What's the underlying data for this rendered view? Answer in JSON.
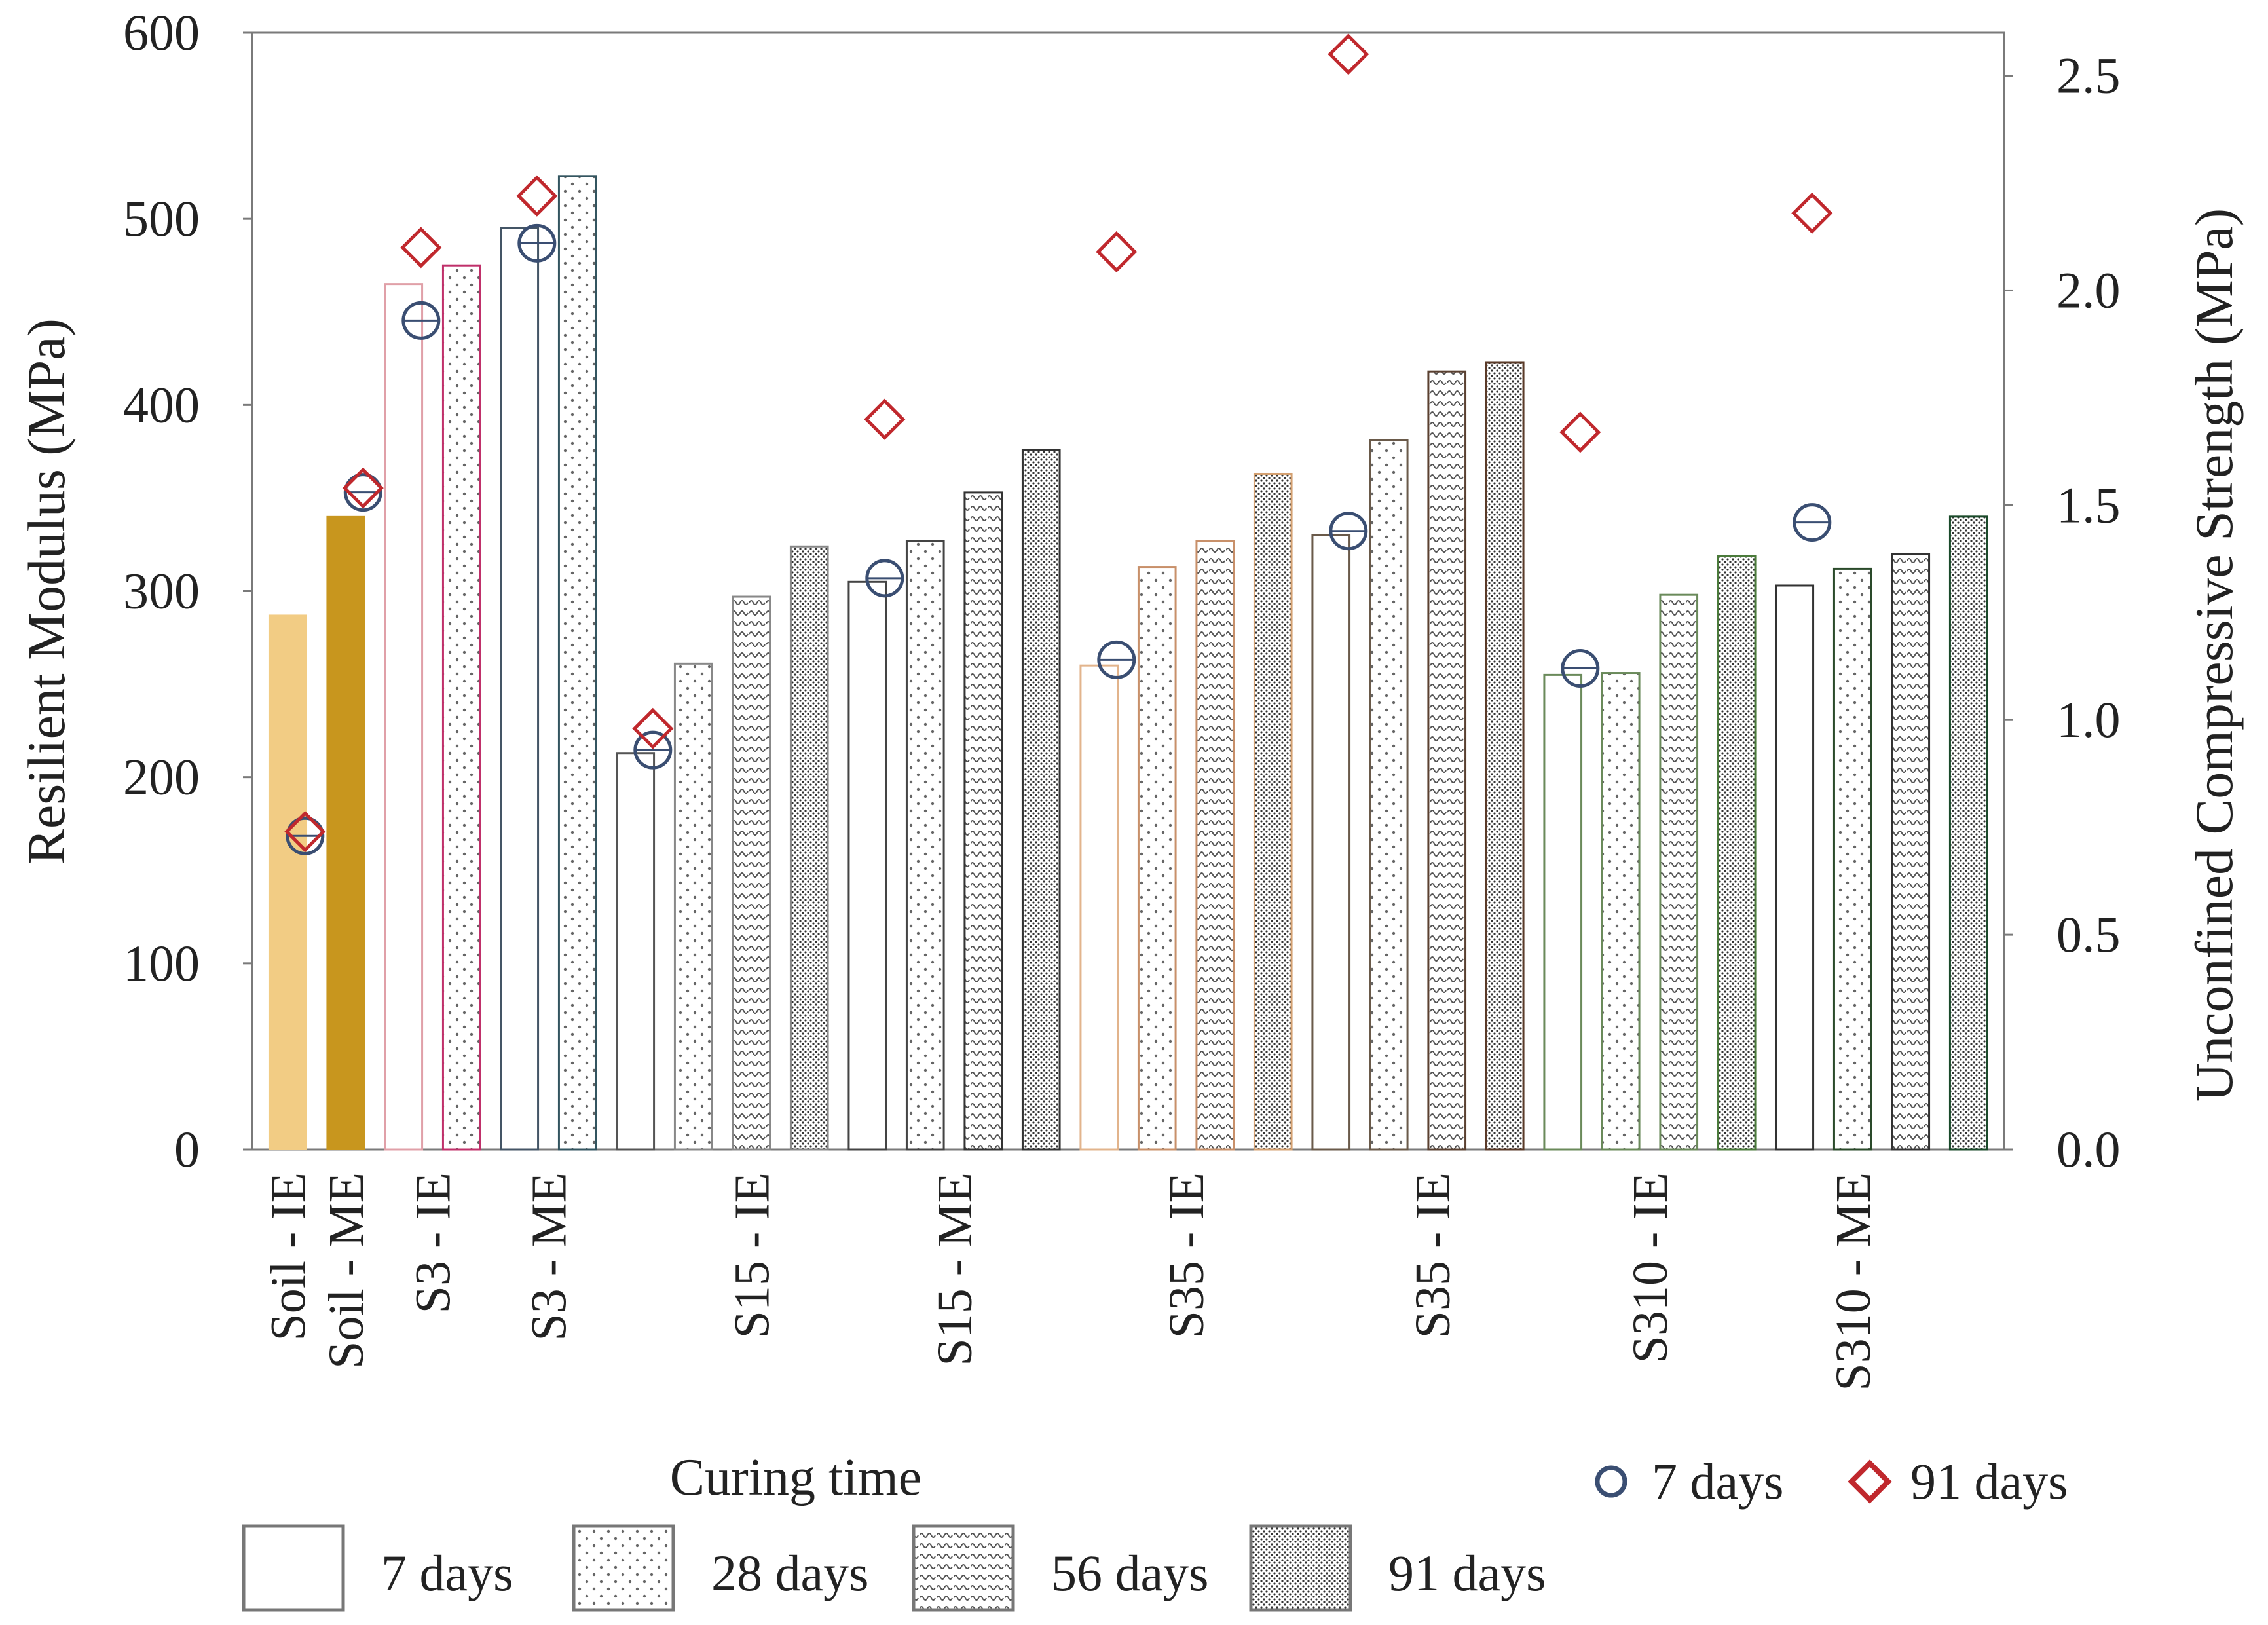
{
  "chart_data": {
    "type": "bar",
    "y_left": {
      "label": "Resilient Modulus (MPa)",
      "range": [
        0,
        600
      ],
      "ticks": [
        "0",
        "100",
        "200",
        "300",
        "400",
        "500",
        "600"
      ]
    },
    "y_right": {
      "label": "Unconfined Compressive Strength (MPa)",
      "range": [
        0,
        2.6
      ],
      "ticks": [
        "0.0",
        "0.5",
        "1.0",
        "1.5",
        "2.0",
        "2.5"
      ]
    },
    "group_labels": [
      {
        "label": "Soil - IE",
        "slot": 0
      },
      {
        "label": "Soil - ME",
        "slot": 1
      },
      {
        "label": "S3 - IE",
        "slot": 2.5
      },
      {
        "label": "S3 - ME",
        "slot": 4.5
      },
      {
        "label": "S15 - IE",
        "slot": 8
      },
      {
        "label": "S15 - ME",
        "slot": 11.5
      },
      {
        "label": "S35 - IE",
        "slot": 15.5
      },
      {
        "label": "S35 - IE",
        "slot": 19.75
      },
      {
        "label": "S310 - IE",
        "slot": 23.5
      },
      {
        "label": "S310 - ME",
        "slot": 27
      }
    ],
    "bars": [
      {
        "value": 287,
        "curing": "7 days",
        "color": "#F2CC84",
        "solid": true
      },
      {
        "value": 340,
        "curing": "7 days",
        "color": "#C8961E",
        "solid": true
      },
      {
        "value": 465,
        "curing": "7 days",
        "color": "#E0A0A8"
      },
      {
        "value": 475,
        "curing": "28 days",
        "color": "#C0306A"
      },
      {
        "value": 495,
        "curing": "7 days",
        "color": "#445566"
      },
      {
        "value": 523,
        "curing": "28 days",
        "color": "#335560"
      },
      {
        "value": 213,
        "curing": "7 days",
        "color": "#555555"
      },
      {
        "value": 261,
        "curing": "28 days",
        "color": "#888888"
      },
      {
        "value": 297,
        "curing": "56 days",
        "color": "#888888"
      },
      {
        "value": 324,
        "curing": "91 days",
        "color": "#888888"
      },
      {
        "value": 305,
        "curing": "7 days",
        "color": "#444444"
      },
      {
        "value": 327,
        "curing": "28 days",
        "color": "#444444"
      },
      {
        "value": 353,
        "curing": "56 days",
        "color": "#333333"
      },
      {
        "value": 376,
        "curing": "91 days",
        "color": "#333333"
      },
      {
        "value": 260,
        "curing": "7 days",
        "color": "#E2B48C"
      },
      {
        "value": 313,
        "curing": "28 days",
        "color": "#C8906A"
      },
      {
        "value": 327,
        "curing": "56 days",
        "color": "#C8906A"
      },
      {
        "value": 363,
        "curing": "91 days",
        "color": "#D4A070"
      },
      {
        "value": 330,
        "curing": "7 days",
        "color": "#6A5A4A"
      },
      {
        "value": 381,
        "curing": "28 days",
        "color": "#6A5A4A"
      },
      {
        "value": 418,
        "curing": "56 days",
        "color": "#5A4030"
      },
      {
        "value": 423,
        "curing": "91 days",
        "color": "#5A3A28"
      },
      {
        "value": 255,
        "curing": "7 days",
        "color": "#6A8A5A"
      },
      {
        "value": 256,
        "curing": "28 days",
        "color": "#6A8A5A"
      },
      {
        "value": 298,
        "curing": "56 days",
        "color": "#6A8A5A"
      },
      {
        "value": 319,
        "curing": "91 days",
        "color": "#4A7A3A"
      },
      {
        "value": 303,
        "curing": "7 days",
        "color": "#333333"
      },
      {
        "value": 312,
        "curing": "28 days",
        "color": "#2A4A2A"
      },
      {
        "value": 320,
        "curing": "56 days",
        "color": "#333333"
      },
      {
        "value": 340,
        "curing": "91 days",
        "color": "#1A4A2A"
      }
    ],
    "ucs_series": [
      {
        "name": "7 days",
        "marker": "circle",
        "color": "#3A4E72",
        "points": [
          {
            "slot": 0.3,
            "value": 0.73
          },
          {
            "slot": 1.3,
            "value": 1.53
          },
          {
            "slot": 2.3,
            "value": 1.93
          },
          {
            "slot": 4.3,
            "value": 2.11
          },
          {
            "slot": 6.3,
            "value": 0.93
          },
          {
            "slot": 10.3,
            "value": 1.33
          },
          {
            "slot": 14.3,
            "value": 1.14
          },
          {
            "slot": 18.3,
            "value": 1.44
          },
          {
            "slot": 22.3,
            "value": 1.12
          },
          {
            "slot": 26.3,
            "value": 1.46
          }
        ]
      },
      {
        "name": "91 days",
        "marker": "diamond",
        "color": "#C0282D",
        "points": [
          {
            "slot": 0.3,
            "value": 0.74
          },
          {
            "slot": 1.3,
            "value": 1.54
          },
          {
            "slot": 2.3,
            "value": 2.1
          },
          {
            "slot": 4.3,
            "value": 2.22
          },
          {
            "slot": 6.3,
            "value": 0.98
          },
          {
            "slot": 10.3,
            "value": 1.7
          },
          {
            "slot": 14.3,
            "value": 2.09
          },
          {
            "slot": 18.3,
            "value": 2.55
          },
          {
            "slot": 22.3,
            "value": 1.67
          },
          {
            "slot": 26.3,
            "value": 2.18
          }
        ]
      }
    ],
    "legend_bars": {
      "title": "Curing time",
      "items": [
        {
          "label": "7 days",
          "pattern": "none"
        },
        {
          "label": "28 days",
          "pattern": "dots"
        },
        {
          "label": "56 days",
          "pattern": "waves"
        },
        {
          "label": "91 days",
          "pattern": "dense"
        }
      ]
    },
    "legend_markers": [
      {
        "label": "7 days",
        "marker": "circle"
      },
      {
        "label": "91 days",
        "marker": "diamond"
      }
    ]
  }
}
